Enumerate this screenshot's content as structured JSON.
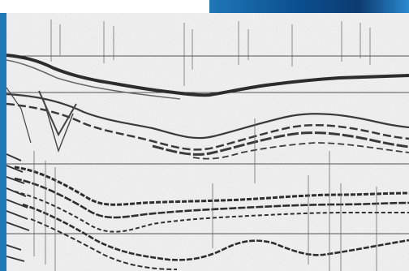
{
  "scene": {
    "kind": "seismic-reflection-profile",
    "accent_color": "#1f79b8",
    "background_color": "#f3f3f3",
    "top_bar_color": "#0a4f8f"
  }
}
